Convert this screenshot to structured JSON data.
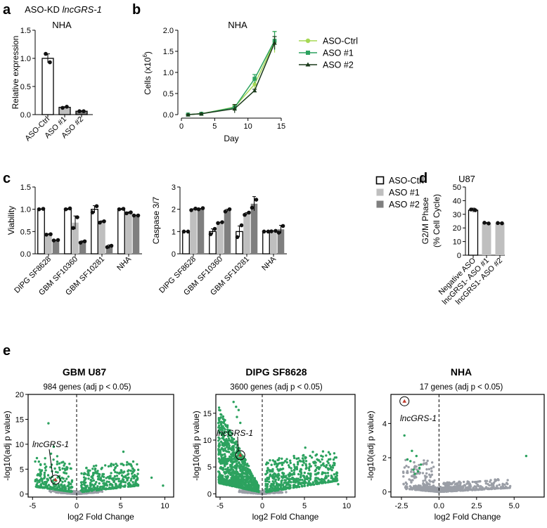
{
  "colors": {
    "ctrl": "#ffffff",
    "aso1": "#bfbfbf",
    "aso2": "#7f7f7f",
    "growth_ctrl": "#a6d854",
    "growth_aso1": "#2ca25f",
    "growth_aso2": "#1b3a1b",
    "volcano_sig": "#2ca25f",
    "volcano_ns": "#9a9ea6",
    "highlight": "#c0392b"
  },
  "panels": {
    "a": "a",
    "b": "b",
    "c": "c",
    "d": "d",
    "e": "e"
  },
  "chart_data": [
    {
      "id": "a",
      "type": "bar",
      "title_prefix": "ASO-KD ",
      "title_gene": "lncGRS-1",
      "subtitle": "NHA",
      "categories": [
        "ASO-Ctrl",
        "ASO #1",
        "ASO #2"
      ],
      "values": [
        1.0,
        0.13,
        0.06
      ],
      "errors": [
        0.08,
        0.01,
        0.01
      ],
      "points": [
        [
          1.08,
          0.93
        ],
        [
          0.12,
          0.14
        ],
        [
          0.06,
          0.06
        ]
      ],
      "ylabel": "Relative expression",
      "ylim": [
        0,
        1.5
      ],
      "yticks": [
        "0.0",
        "0.5",
        "1.0",
        "1.5"
      ]
    },
    {
      "id": "b",
      "type": "line",
      "title": "NHA",
      "xlabel": "Day",
      "ylabel_main": "Cells (x10",
      "ylabel_sup": "6",
      "ylabel_end": ")",
      "x": [
        1,
        3,
        8,
        11,
        14
      ],
      "series": [
        {
          "name": "ASO-Ctrl",
          "values": [
            0.0,
            0.02,
            0.18,
            0.72,
            1.72
          ],
          "errors": [
            0.005,
            0.01,
            0.05,
            0.1,
            0.25
          ]
        },
        {
          "name": "ASO #1",
          "values": [
            0.0,
            0.02,
            0.17,
            0.85,
            1.75
          ],
          "errors": [
            0.005,
            0.01,
            0.03,
            0.1,
            0.22
          ]
        },
        {
          "name": "ASO #2",
          "values": [
            0.0,
            0.02,
            0.14,
            0.57,
            1.7
          ],
          "errors": [
            0.005,
            0.01,
            0.1,
            0.03,
            0.15
          ]
        }
      ],
      "xlim": [
        0,
        15
      ],
      "ylim": [
        0,
        2.0
      ],
      "xticks": [
        "0",
        "5",
        "10",
        "15"
      ],
      "yticks": [
        "0.0",
        "0.5",
        "1.0",
        "1.5",
        "2.0"
      ]
    },
    {
      "id": "c-viability",
      "type": "bar",
      "categories": [
        "DIPG SF8628",
        "GBM SF10360",
        "GBM SF10281",
        "NHA"
      ],
      "series": [
        {
          "name": "ASO-Ctrl",
          "values": [
            1.0,
            1.0,
            1.0,
            1.0
          ],
          "errors": [
            0.01,
            0.02,
            0.08,
            0.02
          ],
          "points": [
            [
              1.0,
              1.01
            ],
            [
              1.0,
              1.02
            ],
            [
              0.93,
              1.07
            ],
            [
              1.0,
              1.01
            ]
          ]
        },
        {
          "name": "ASO #1",
          "values": [
            0.44,
            0.7,
            0.72,
            0.92
          ],
          "errors": [
            0.01,
            0.15,
            0.02,
            0.02
          ],
          "points": [
            [
              0.43,
              0.44
            ],
            [
              0.58,
              0.82
            ],
            [
              0.7,
              0.73
            ],
            [
              0.91,
              0.93
            ]
          ]
        },
        {
          "name": "ASO #2",
          "values": [
            0.3,
            0.27,
            0.16,
            0.86
          ],
          "errors": [
            0.01,
            0.02,
            0.04,
            0.01
          ],
          "points": [
            [
              0.3,
              0.31
            ],
            [
              0.25,
              0.28
            ],
            [
              0.15,
              0.18
            ],
            [
              0.86,
              0.86
            ]
          ]
        }
      ],
      "ylabel": "Viability",
      "ylim": [
        0,
        1.5
      ],
      "yticks": [
        "0.0",
        "0.5",
        "1.0",
        "1.5"
      ]
    },
    {
      "id": "c-caspase",
      "type": "bar",
      "categories": [
        "DIPG SF8628",
        "GBM SF10360",
        "GBM SF10281",
        "NHA"
      ],
      "series": [
        {
          "name": "ASO-Ctrl",
          "values": [
            1.0,
            1.0,
            1.0,
            1.0
          ],
          "errors": [
            0.01,
            0.12,
            0.25,
            0.01
          ],
          "points": [
            [
              1.0,
              1.0
            ],
            [
              0.88,
              1.12
            ],
            [
              0.75,
              1.28
            ],
            [
              1.0,
              1.0
            ]
          ]
        },
        {
          "name": "ASO #1",
          "values": [
            2.0,
            1.4,
            1.8,
            1.02
          ],
          "errors": [
            0.02,
            0.02,
            0.05,
            0.01
          ],
          "points": [
            [
              1.96,
              2.03
            ],
            [
              1.38,
              1.42
            ],
            [
              1.75,
              1.85
            ],
            [
              1.01,
              1.03
            ]
          ]
        },
        {
          "name": "ASO #2",
          "values": [
            2.02,
            1.95,
            2.25,
            1.1
          ],
          "errors": [
            0.02,
            0.05,
            0.32,
            0.18
          ],
          "points": [
            [
              2.0,
              2.05
            ],
            [
              1.9,
              2.0
            ],
            [
              2.07,
              2.43
            ],
            [
              0.95,
              1.25
            ]
          ]
        }
      ],
      "ylabel": "Caspase 3/7",
      "ylim": [
        0,
        3
      ],
      "yticks": [
        "0",
        "1",
        "2",
        "3"
      ]
    },
    {
      "id": "d",
      "type": "bar",
      "title": "U87",
      "categories": [
        "Negative ASO",
        "lncGRS1- ASO #1",
        "lncGRS1- ASO #2"
      ],
      "values": [
        33,
        23.5,
        23.5
      ],
      "errors": [
        1.5,
        0.5,
        0.3
      ],
      "points": [
        [
          33.5,
          33
        ],
        [
          23.8,
          23.3
        ],
        [
          23.6,
          23.4
        ]
      ],
      "ylabel1": "G2/M Phase",
      "ylabel2": "(% Cell Cycle)",
      "ylim": [
        0,
        50
      ],
      "yticks": [
        "0",
        "10",
        "20",
        "30",
        "40",
        "50"
      ]
    },
    {
      "id": "e-u87",
      "type": "scatter",
      "title": "GBM U87",
      "subtitle": "984 genes (adj p < 0.05)",
      "xlabel": "log2 Fold Change",
      "ylabel": "-log10(adj p value)",
      "xlim": [
        -5.5,
        11
      ],
      "ylim": [
        -0.6,
        20
      ],
      "xticks": [
        "-5",
        "0",
        "5",
        "10"
      ],
      "yticks": [
        "0",
        "5",
        "10",
        "15",
        "20"
      ],
      "highlight": {
        "label": "lncGRS-1",
        "x": -2.4,
        "y": 2.9
      },
      "threshold_x": 0
    },
    {
      "id": "e-sf8628",
      "type": "scatter",
      "title": "DIPG SF8628",
      "subtitle": "3600 genes (adj p < 0.05)",
      "xlabel": "log2 Fold Change",
      "ylabel": "-log10(adj p value)",
      "xlim": [
        -5.5,
        11
      ],
      "ylim": [
        -0.6,
        18.5
      ],
      "xticks": [
        "-5",
        "0",
        "5",
        "10"
      ],
      "yticks": [
        "0",
        "5",
        "10",
        "15"
      ],
      "highlight": {
        "label": "lncGRS-1",
        "x": -2.6,
        "y": 7.2
      },
      "threshold_x": 0
    },
    {
      "id": "e-nha",
      "type": "scatter",
      "title": "NHA",
      "subtitle": "17 genes (adj p < 0.05)",
      "xlabel": "log2 Fold Change",
      "ylabel": "-log10(adj p value)",
      "xlim": [
        -3.2,
        7
      ],
      "ylim": [
        -0.3,
        5.7
      ],
      "xticks": [
        "-2.5",
        "0.0",
        "2.5",
        "5.0"
      ],
      "yticks": [
        "0",
        "2",
        "4"
      ],
      "highlight": {
        "label": "lncGRS-1",
        "x": -2.3,
        "y": 5.3
      },
      "threshold_x": 0
    }
  ]
}
